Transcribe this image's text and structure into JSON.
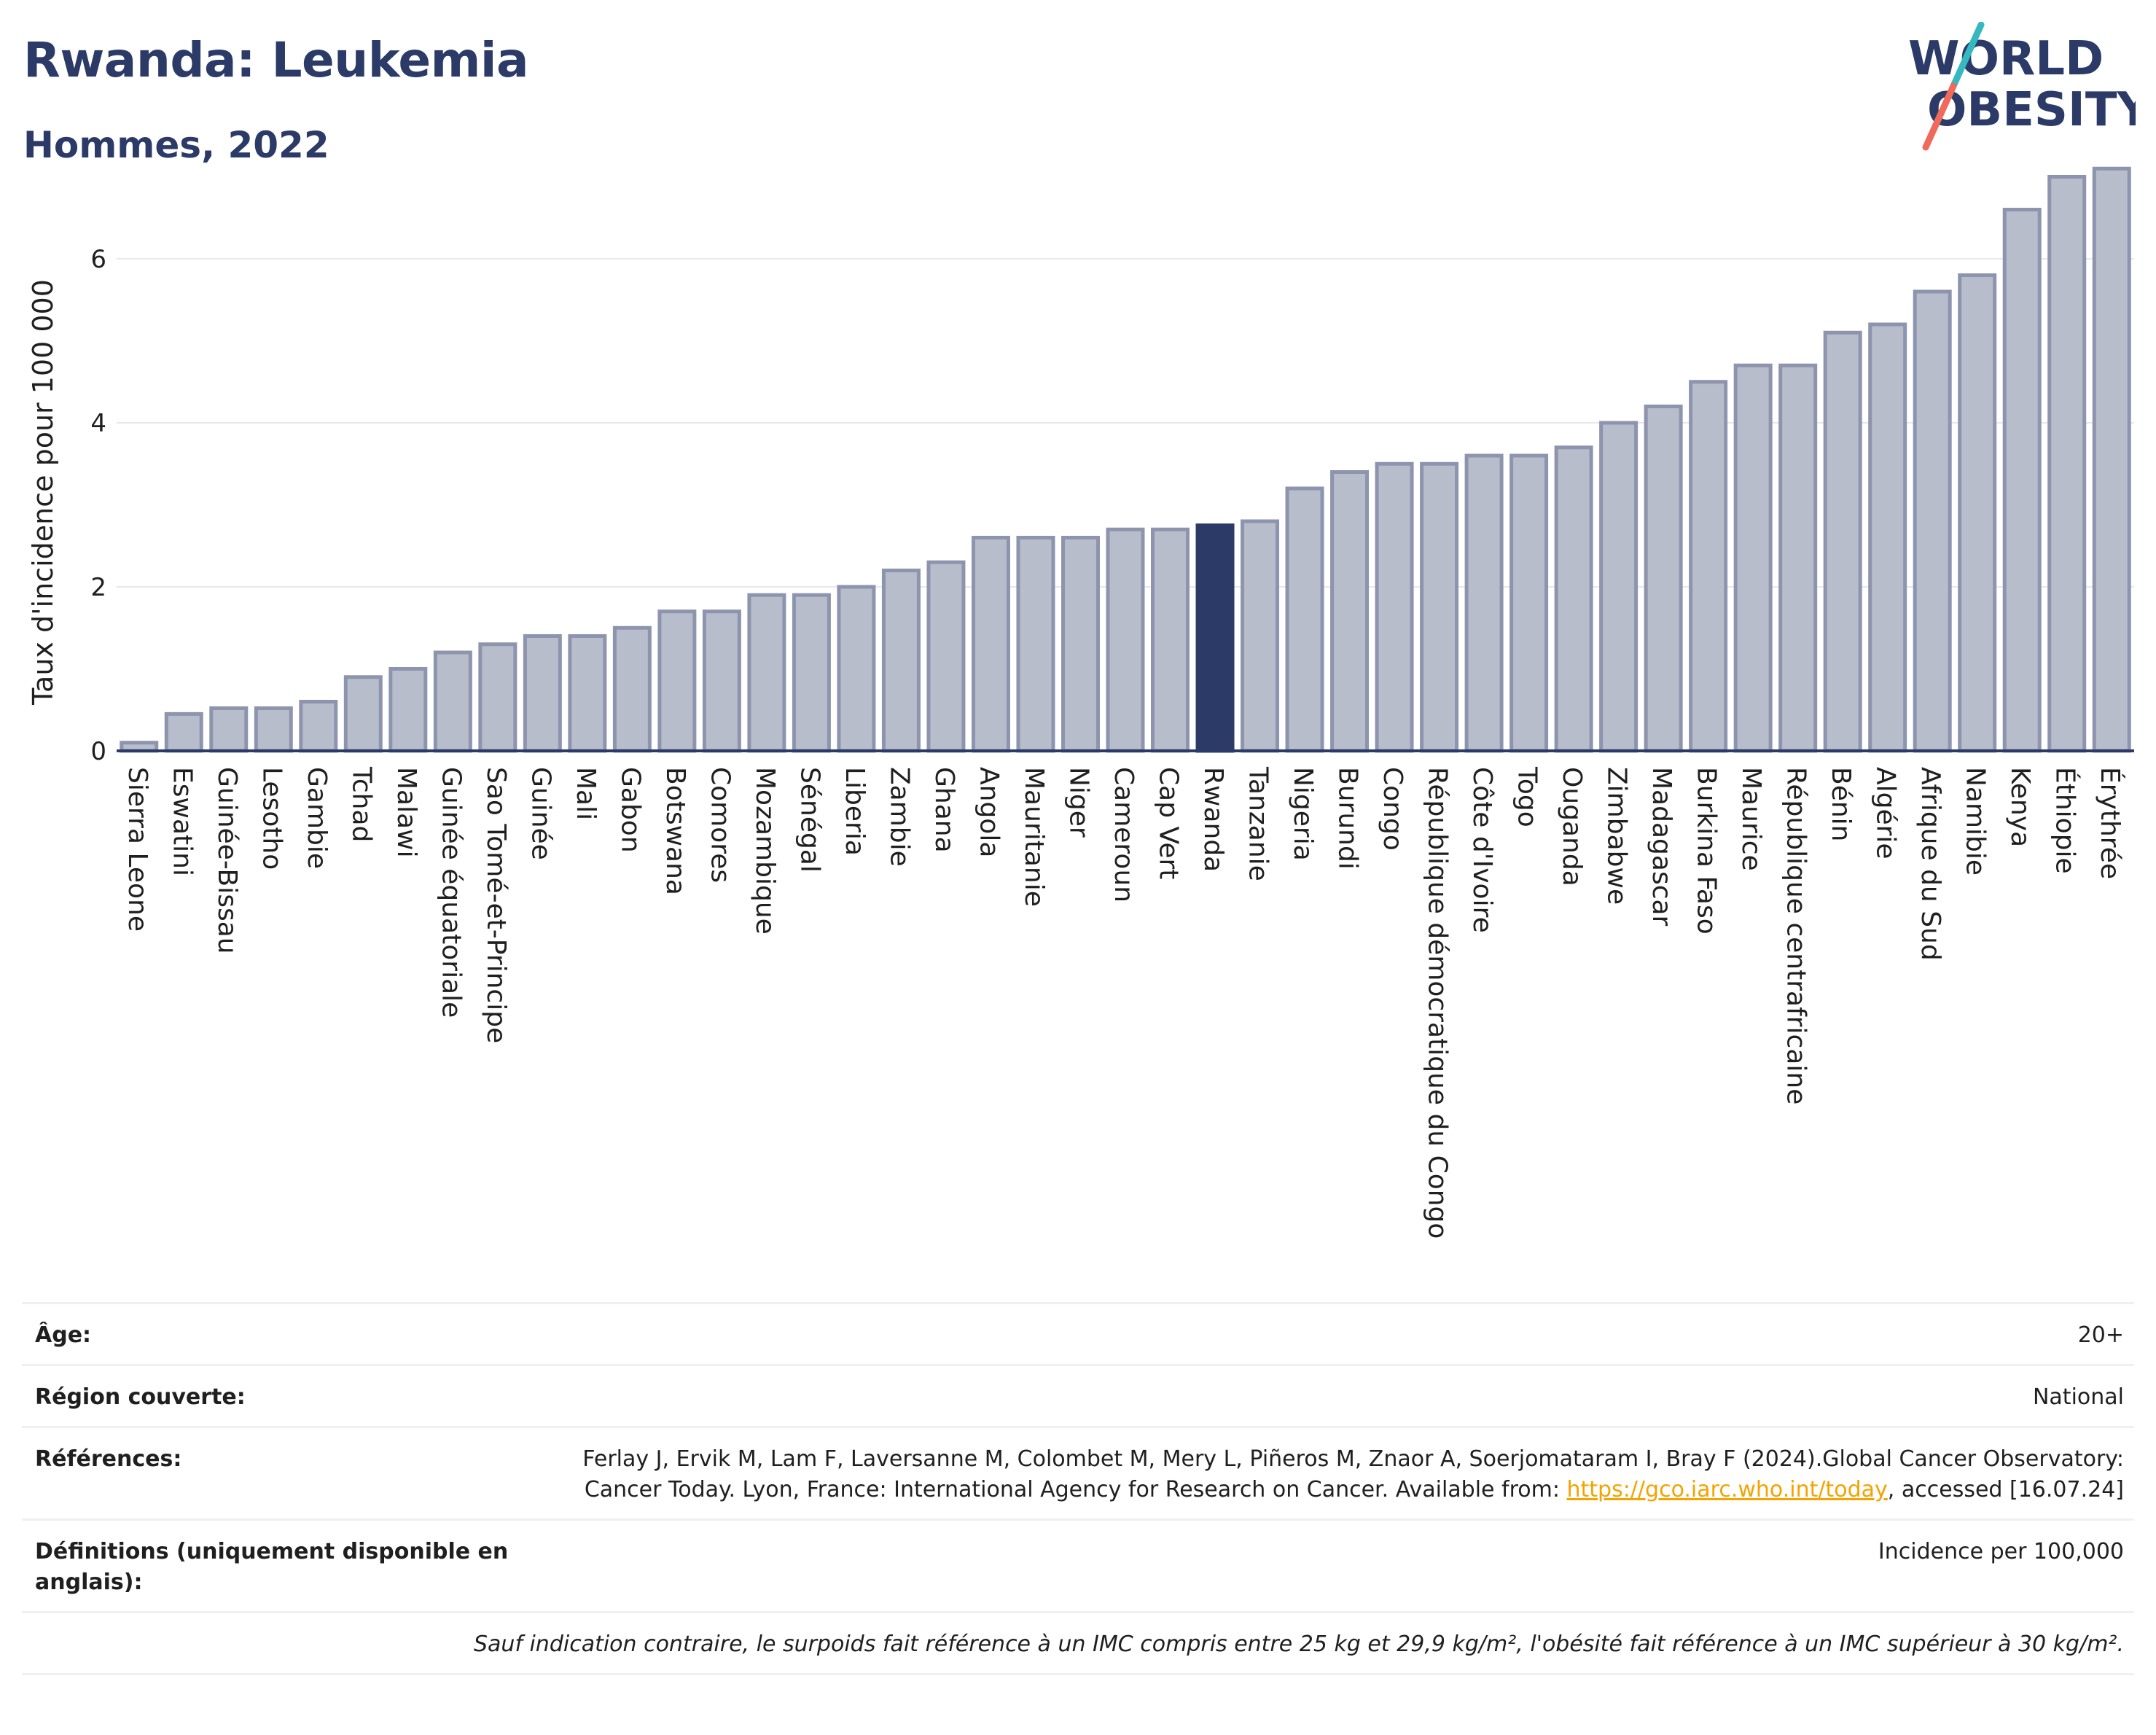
{
  "header": {
    "title": "Rwanda: Leukemia",
    "subtitle": "Hommes, 2022",
    "logo_line1": "WORLD",
    "logo_line2": "OBESITY"
  },
  "colors": {
    "bar": "#b8bdcc",
    "bar_border": "#8d94ad",
    "highlight": "#2b3a67",
    "grid": "#e6e8ee",
    "title": "#2b3a67",
    "logo_teal": "#35b8c0",
    "logo_coral": "#ef6a5a"
  },
  "chart_data": {
    "type": "bar",
    "ylabel": "Taux d'incidence pour 100 000",
    "xlabel": "",
    "ylim": [
      0,
      7.2
    ],
    "yticks": [
      0,
      2,
      4,
      6
    ],
    "highlight": "Rwanda",
    "categories": [
      "Sierra Leone",
      "Eswatini",
      "Guinée-Bissau",
      "Lesotho",
      "Gambie",
      "Tchad",
      "Malawi",
      "Guinée équatoriale",
      "Sao Tomé-et-Principe",
      "Guinée",
      "Mali",
      "Gabon",
      "Botswana",
      "Comores",
      "Mozambique",
      "Sénégal",
      "Liberia",
      "Zambie",
      "Ghana",
      "Angola",
      "Mauritanie",
      "Niger",
      "Cameroun",
      "Cap Vert",
      "Rwanda",
      "Tanzanie",
      "Nigeria",
      "Burundi",
      "Congo",
      "République démocratique du Congo",
      "Côte d'Ivoire",
      "Togo",
      "Ouganda",
      "Zimbabwe",
      "Madagascar",
      "Burkina Faso",
      "Maurice",
      "République centrafricaine",
      "Bénin",
      "Algérie",
      "Afrique du Sud",
      "Namibie",
      "Kenya",
      "Éthiopie",
      "Érythrée"
    ],
    "values": [
      0.1,
      0.45,
      0.52,
      0.52,
      0.6,
      0.9,
      1.0,
      1.2,
      1.3,
      1.4,
      1.4,
      1.5,
      1.7,
      1.7,
      1.9,
      1.9,
      2.0,
      2.2,
      2.3,
      2.6,
      2.6,
      2.6,
      2.7,
      2.7,
      2.75,
      2.8,
      3.2,
      3.4,
      3.5,
      3.5,
      3.6,
      3.6,
      3.7,
      4.0,
      4.2,
      4.5,
      4.7,
      4.7,
      5.1,
      5.2,
      5.6,
      5.8,
      6.6,
      7.0,
      7.1
    ]
  },
  "info": {
    "age_label": "Âge:",
    "age_value": "20+",
    "region_label": "Région couverte:",
    "region_value": "National",
    "refs_label": "Références:",
    "refs_text1": "Ferlay J, Ervik M, Lam F, Laversanne M, Colombet M, Mery L, Piñeros M, Znaor A, Soerjomataram I, Bray F (2024).Global Cancer Observatory: Cancer Today. Lyon, France: International Agency for Research on Cancer. Available from: ",
    "refs_link": "https://gco.iarc.who.int/today",
    "refs_text2": ", accessed [16.07.24]",
    "defs_label": "Définitions (uniquement disponible en anglais):",
    "defs_value": "Incidence per 100,000",
    "footnote": "Sauf indication contraire, le surpoids fait référence à un IMC compris entre 25 kg et 29,9 kg/m², l'obésité fait référence à un IMC supérieur à 30 kg/m²."
  }
}
